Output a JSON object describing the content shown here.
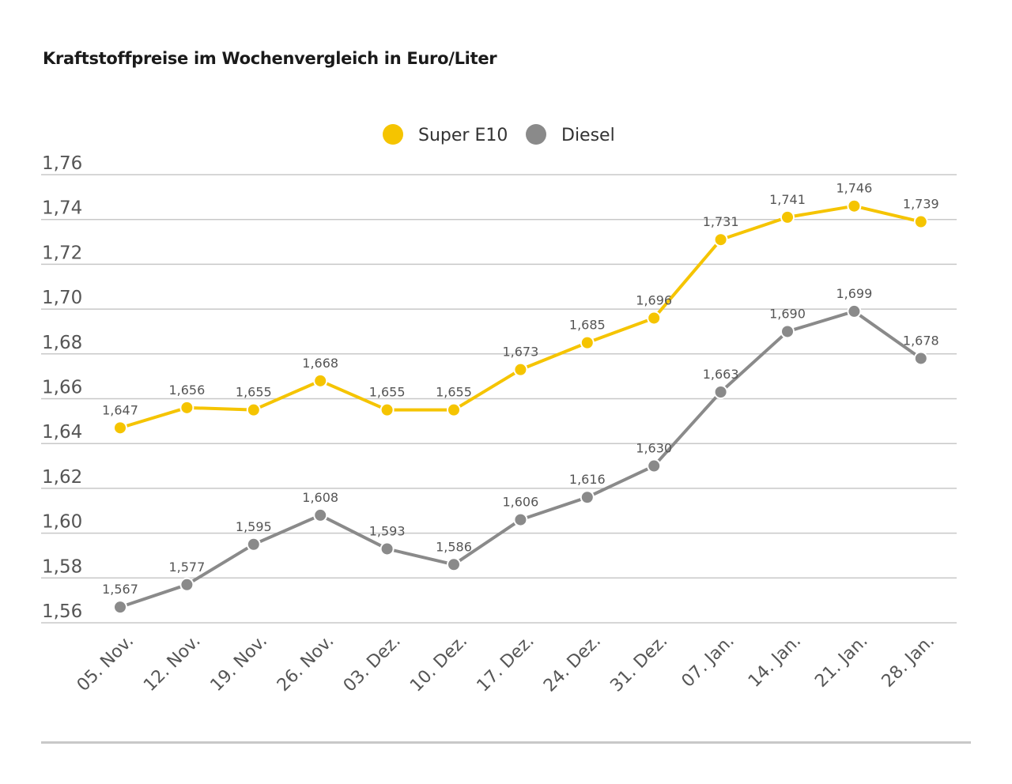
{
  "title": "Kraftstoffpreise im Wochenvergleich in Euro/Liter",
  "colors": {
    "super": "#f5c400",
    "diesel": "#8a8a8a",
    "grid": "#c8c8c8",
    "text": "#555555"
  },
  "chart_data": {
    "type": "line",
    "title": "Kraftstoffpreise im Wochenvergleich in Euro/Liter",
    "xlabel": "",
    "ylabel": "",
    "categories": [
      "05. Nov.",
      "12. Nov.",
      "19. Nov.",
      "26. Nov.",
      "03. Dez.",
      "10. Dez.",
      "17. Dez.",
      "24. Dez.",
      "31. Dez.",
      "07. Jan.",
      "14. Jan.",
      "21. Jan.",
      "28. Jan."
    ],
    "ylim": [
      1.56,
      1.76
    ],
    "yticks": [
      1.56,
      1.58,
      1.6,
      1.62,
      1.64,
      1.66,
      1.68,
      1.7,
      1.72,
      1.74,
      1.76
    ],
    "ytick_labels": [
      "1,56",
      "1,58",
      "1,60",
      "1,62",
      "1,64",
      "1,66",
      "1,68",
      "1,70",
      "1,72",
      "1,74",
      "1,76"
    ],
    "grid": true,
    "legend_position": "top-center",
    "series": [
      {
        "name": "Super E10",
        "color": "#f5c400",
        "values": [
          1.647,
          1.656,
          1.655,
          1.668,
          1.655,
          1.655,
          1.673,
          1.685,
          1.696,
          1.731,
          1.741,
          1.746,
          1.739
        ],
        "labels": [
          "1,647",
          "1,656",
          "1,655",
          "1,668",
          "1,655",
          "1,655",
          "1,673",
          "1,685",
          "1,696",
          "1,731",
          "1,741",
          "1,746",
          "1,739"
        ]
      },
      {
        "name": "Diesel",
        "color": "#8a8a8a",
        "values": [
          1.567,
          1.577,
          1.595,
          1.608,
          1.593,
          1.586,
          1.606,
          1.616,
          1.63,
          1.663,
          1.69,
          1.699,
          1.678
        ],
        "labels": [
          "1,567",
          "1,577",
          "1,595",
          "1,608",
          "1,593",
          "1,586",
          "1,606",
          "1,616",
          "1,630",
          "1,663",
          "1,690",
          "1,699",
          "1,678"
        ]
      }
    ]
  }
}
